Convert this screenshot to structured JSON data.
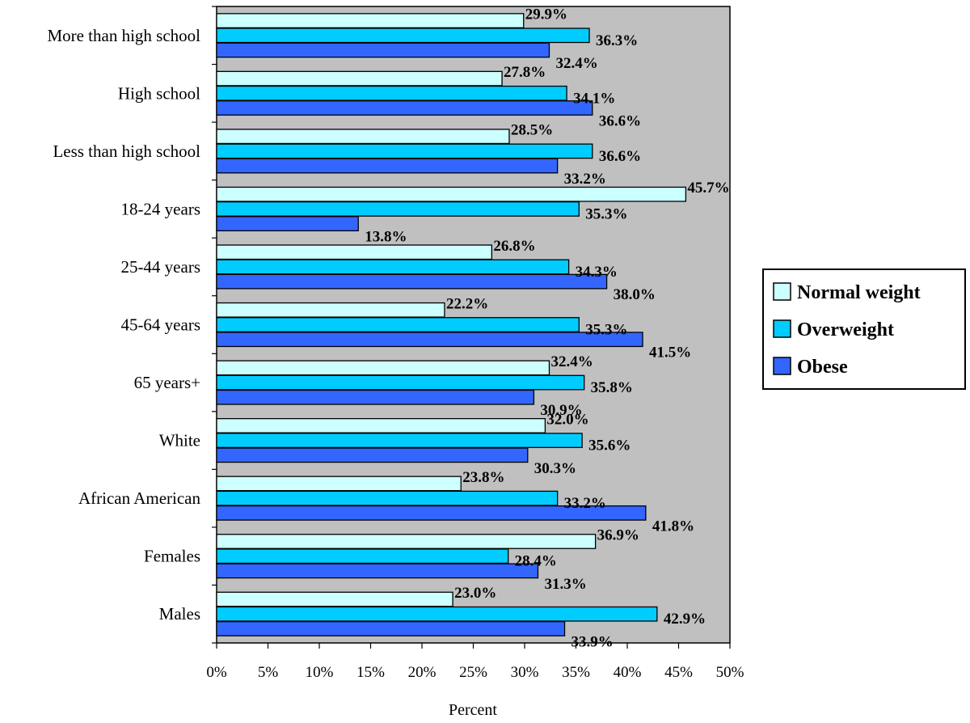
{
  "chart_data": {
    "type": "bar",
    "orientation": "horizontal",
    "categories": [
      "More than high school",
      "High school",
      "Less than high school",
      "18-24 years",
      "25-44 years",
      "45-64 years",
      "65 years+",
      "White",
      "African American",
      "Females",
      "Males"
    ],
    "series": [
      {
        "name": "Normal weight",
        "color": "#CCFFFF",
        "values": [
          29.9,
          27.8,
          28.5,
          45.7,
          26.8,
          22.2,
          32.4,
          32.0,
          23.8,
          36.9,
          23.0
        ]
      },
      {
        "name": "Overweight",
        "color": "#00CCFF",
        "values": [
          36.3,
          34.1,
          36.6,
          35.3,
          34.3,
          35.3,
          35.8,
          35.6,
          33.2,
          28.4,
          42.9
        ]
      },
      {
        "name": "Obese",
        "color": "#3366FF",
        "values": [
          32.4,
          36.6,
          33.2,
          13.8,
          38.0,
          41.5,
          30.9,
          30.3,
          41.8,
          31.3,
          33.9
        ]
      }
    ],
    "xlim": [
      0,
      50
    ],
    "xticks": [
      0,
      5,
      10,
      15,
      20,
      25,
      30,
      35,
      40,
      45,
      50
    ],
    "tick_format": "{v}%",
    "value_format": "{v}%",
    "xlabel": "Percent",
    "plot_background": "#C0C0C0",
    "legend_position": "right",
    "grid": false
  }
}
